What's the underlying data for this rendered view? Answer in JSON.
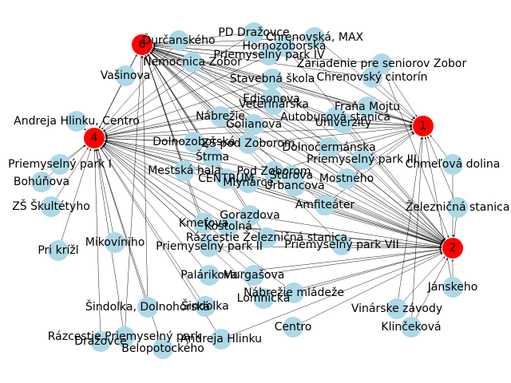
{
  "colors": {
    "hub": "#ff0000",
    "stop": "#add8e6",
    "edge": "#000000",
    "background": "#ffffff"
  },
  "hubs": [
    {
      "id": "h6",
      "label": "6"
    },
    {
      "id": "h1",
      "label": "1"
    },
    {
      "id": "h4",
      "label": "4"
    },
    {
      "id": "h2",
      "label": "2"
    }
  ],
  "stops": [
    {
      "id": "s1",
      "label": "Ďurčanského"
    },
    {
      "id": "s2",
      "label": "PD Dražovce"
    },
    {
      "id": "s3",
      "label": "Chrenovská, MAX"
    },
    {
      "id": "s4",
      "label": "Hornozoborská"
    },
    {
      "id": "s5",
      "label": "Priemyselný park IV"
    },
    {
      "id": "s6",
      "label": "Nemocnica Zobor"
    },
    {
      "id": "s7",
      "label": "Zariadenie pre seniorov Zobor"
    },
    {
      "id": "s8",
      "label": "Vašinova"
    },
    {
      "id": "s9",
      "label": "Stavebná škola"
    },
    {
      "id": "s10",
      "label": "Chrenovský cintorín"
    },
    {
      "id": "s11",
      "label": "Edisonova"
    },
    {
      "id": "s12",
      "label": "Veterinárska"
    },
    {
      "id": "s13",
      "label": "Fraňa Mojtu"
    },
    {
      "id": "s14",
      "label": "Nábrežie"
    },
    {
      "id": "s15",
      "label": "Autobusová stanica"
    },
    {
      "id": "s16",
      "label": "Golianova"
    },
    {
      "id": "s17",
      "label": "Univerzity"
    },
    {
      "id": "s18",
      "label": "Andreja Hlinku, Centro"
    },
    {
      "id": "s19",
      "label": "Dolnozoborská"
    },
    {
      "id": "s20",
      "label": "ZŠ pod Zoborom"
    },
    {
      "id": "s21",
      "label": "Dolnočermánska"
    },
    {
      "id": "s22",
      "label": "Priemyselný park I"
    },
    {
      "id": "s23",
      "label": "Priemyselný park III"
    },
    {
      "id": "s24",
      "label": "Chmeľová dolina"
    },
    {
      "id": "s25",
      "label": "Bohúňova"
    },
    {
      "id": "s26",
      "label": "Mestská hala"
    },
    {
      "id": "s27",
      "label": "Štrma"
    },
    {
      "id": "s28",
      "label": "Pod Zoborom"
    },
    {
      "id": "s29",
      "label": "CENTRUM"
    },
    {
      "id": "s30",
      "label": "Mlynárce"
    },
    {
      "id": "s31",
      "label": "Štúrova"
    },
    {
      "id": "s32",
      "label": "Urbancova"
    },
    {
      "id": "s33",
      "label": "Mostného"
    },
    {
      "id": "s34",
      "label": "ZŠ Škultétyho"
    },
    {
      "id": "s35",
      "label": "Železničná stanica"
    },
    {
      "id": "s36",
      "label": "Amfiteáter"
    },
    {
      "id": "s37",
      "label": "Gorazdova"
    },
    {
      "id": "s38",
      "label": "Kmeťova"
    },
    {
      "id": "s39",
      "label": "Kostolná"
    },
    {
      "id": "s40",
      "label": "Rázcestie Železničná stanica"
    },
    {
      "id": "s41",
      "label": "Priemyselný park VII"
    },
    {
      "id": "s42",
      "label": "Mikovíniho"
    },
    {
      "id": "s43",
      "label": "Pri krížl"
    },
    {
      "id": "s44",
      "label": "Priemyselný park II"
    },
    {
      "id": "s45",
      "label": "Palárikova"
    },
    {
      "id": "s46",
      "label": "Murgašova"
    },
    {
      "id": "s47",
      "label": "Jánskeho"
    },
    {
      "id": "s48",
      "label": "Nábrežie mládeže"
    },
    {
      "id": "s49",
      "label": "Lomnická"
    },
    {
      "id": "s50",
      "label": "Vinárske závody"
    },
    {
      "id": "s51",
      "label": "Šindolka, Dolnohorská"
    },
    {
      "id": "s52",
      "label": "Šindolka"
    },
    {
      "id": "s53",
      "label": "Centro"
    },
    {
      "id": "s54",
      "label": "Klinčeková"
    },
    {
      "id": "s55",
      "label": "Rázcestie Priemyselný park"
    },
    {
      "id": "s56",
      "label": "Dražovce"
    },
    {
      "id": "s57",
      "label": "Andreja Hlinku"
    },
    {
      "id": "s58",
      "label": "Belopotockého"
    }
  ]
}
